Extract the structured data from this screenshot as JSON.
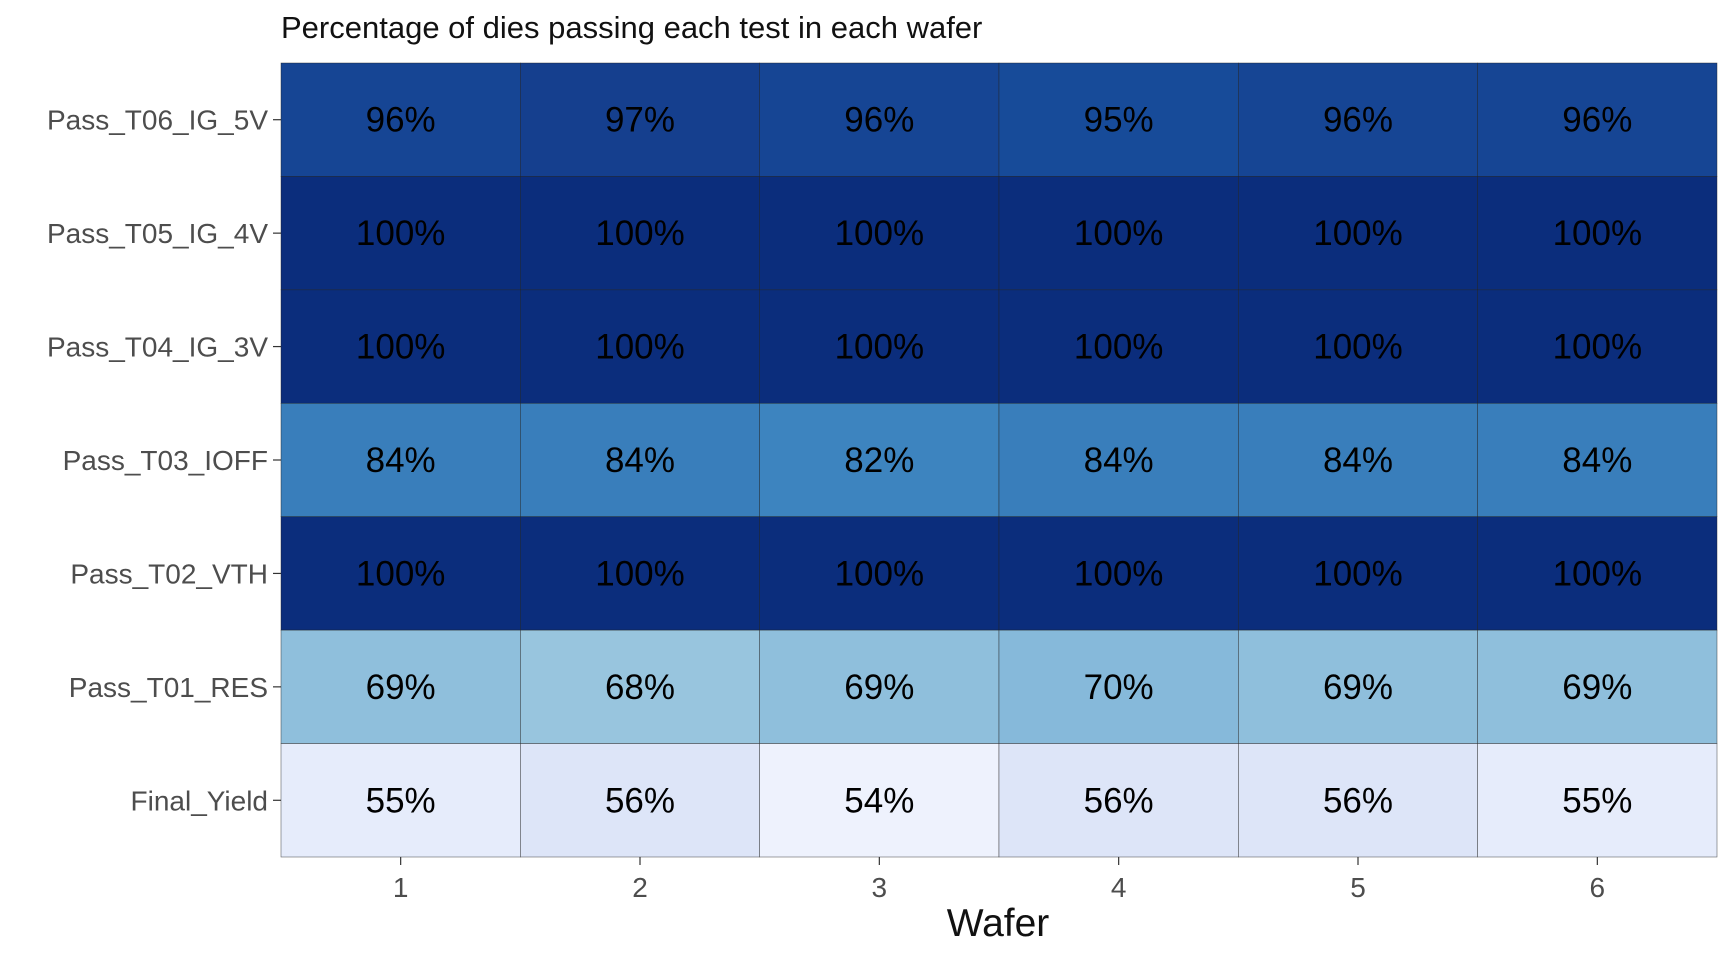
{
  "chart_data": {
    "type": "heatmap",
    "title": "Percentage of dies passing each test in each wafer",
    "xlabel": "Wafer",
    "ylabel": "",
    "x_categories": [
      "1",
      "2",
      "3",
      "4",
      "5",
      "6"
    ],
    "y_categories": [
      "Pass_T06_IG_5V",
      "Pass_T05_IG_4V",
      "Pass_T04_IG_3V",
      "Pass_T03_IOFF",
      "Pass_T02_VTH",
      "Pass_T01_RES",
      "Final_Yield"
    ],
    "values": [
      [
        96,
        97,
        96,
        95,
        96,
        96
      ],
      [
        100,
        100,
        100,
        100,
        100,
        100
      ],
      [
        100,
        100,
        100,
        100,
        100,
        100
      ],
      [
        84,
        84,
        82,
        84,
        84,
        84
      ],
      [
        100,
        100,
        100,
        100,
        100,
        100
      ],
      [
        69,
        68,
        69,
        70,
        69,
        69
      ],
      [
        55,
        56,
        54,
        56,
        56,
        55
      ]
    ],
    "labels": [
      [
        "96%",
        "97%",
        "96%",
        "95%",
        "96%",
        "96%"
      ],
      [
        "100%",
        "100%",
        "100%",
        "100%",
        "100%",
        "100%"
      ],
      [
        "100%",
        "100%",
        "100%",
        "100%",
        "100%",
        "100%"
      ],
      [
        "84%",
        "84%",
        "82%",
        "84%",
        "84%",
        "84%"
      ],
      [
        "100%",
        "100%",
        "100%",
        "100%",
        "100%",
        "100%"
      ],
      [
        "69%",
        "68%",
        "69%",
        "70%",
        "69%",
        "69%"
      ],
      [
        "55%",
        "56%",
        "54%",
        "56%",
        "56%",
        "55%"
      ]
    ],
    "color_scale": {
      "low": "#eef2fd",
      "high": "#0b2d7c",
      "stops": [
        {
          "value": 54,
          "color": "#eef2fd"
        },
        {
          "value": 56,
          "color": "#dde5f8"
        },
        {
          "value": 68,
          "color": "#98c5de"
        },
        {
          "value": 70,
          "color": "#86b9da"
        },
        {
          "value": 82,
          "color": "#3d84bf"
        },
        {
          "value": 84,
          "color": "#397ebb"
        },
        {
          "value": 95,
          "color": "#174b99"
        },
        {
          "value": 97,
          "color": "#153f8e"
        },
        {
          "value": 100,
          "color": "#0b2d7c"
        }
      ]
    },
    "legend": "none",
    "grid": false
  }
}
